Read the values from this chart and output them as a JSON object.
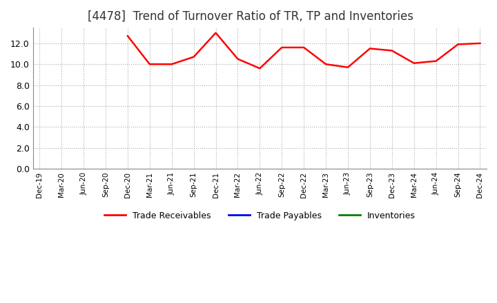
{
  "title": "[4478]  Trend of Turnover Ratio of TR, TP and Inventories",
  "title_fontsize": 12,
  "title_fontweight": "normal",
  "title_color": "#333333",
  "ylim": [
    0,
    13.5
  ],
  "yticks": [
    0.0,
    2.0,
    4.0,
    6.0,
    8.0,
    10.0,
    12.0
  ],
  "background_color": "#ffffff",
  "grid_color": "#aaaaaa",
  "series": {
    "Trade Receivables": {
      "color": "#ff0000",
      "linewidth": 1.8,
      "data": [
        [
          "Dec-19",
          null
        ],
        [
          "Mar-20",
          null
        ],
        [
          "Jun-20",
          null
        ],
        [
          "Sep-20",
          null
        ],
        [
          "Dec-20",
          12.7
        ],
        [
          "Mar-21",
          10.0
        ],
        [
          "Jun-21",
          10.0
        ],
        [
          "Sep-21",
          10.7
        ],
        [
          "Dec-21",
          13.0
        ],
        [
          "Mar-22",
          10.5
        ],
        [
          "Jun-22",
          9.6
        ],
        [
          "Sep-22",
          11.6
        ],
        [
          "Dec-22",
          11.6
        ],
        [
          "Mar-23",
          10.0
        ],
        [
          "Jun-23",
          9.7
        ],
        [
          "Sep-23",
          11.5
        ],
        [
          "Dec-23",
          11.3
        ],
        [
          "Mar-24",
          10.1
        ],
        [
          "Jun-24",
          10.3
        ],
        [
          "Sep-24",
          11.9
        ],
        [
          "Dec-24",
          12.0
        ]
      ]
    },
    "Trade Payables": {
      "color": "#0000ff",
      "linewidth": 1.8,
      "data": []
    },
    "Inventories": {
      "color": "#008000",
      "linewidth": 1.8,
      "data": []
    }
  },
  "xtick_labels": [
    "Dec-19",
    "Mar-20",
    "Jun-20",
    "Sep-20",
    "Dec-20",
    "Mar-21",
    "Jun-21",
    "Sep-21",
    "Dec-21",
    "Mar-22",
    "Jun-22",
    "Sep-22",
    "Dec-22",
    "Mar-23",
    "Jun-23",
    "Sep-23",
    "Dec-23",
    "Mar-24",
    "Jun-24",
    "Sep-24",
    "Dec-24"
  ],
  "legend_labels": [
    "Trade Receivables",
    "Trade Payables",
    "Inventories"
  ],
  "legend_colors": [
    "#ff0000",
    "#0000ff",
    "#008000"
  ]
}
